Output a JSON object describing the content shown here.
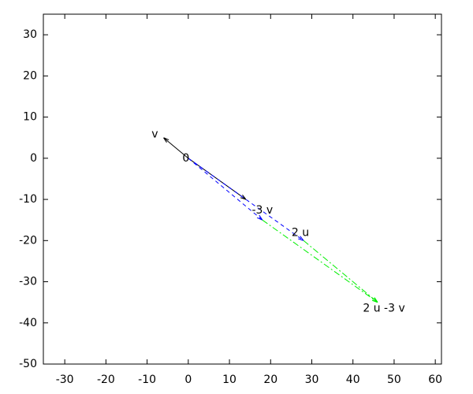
{
  "chart_data": {
    "type": "vector",
    "xlim": [
      -35.2,
      61.5
    ],
    "ylim": [
      -50,
      35
    ],
    "xticks": [
      -30,
      -20,
      -10,
      0,
      10,
      20,
      30,
      40,
      50,
      60
    ],
    "yticks": [
      -50,
      -40,
      -30,
      -20,
      -10,
      0,
      10,
      20,
      30
    ],
    "points": [
      {
        "name": "0",
        "x": 0,
        "y": 0
      },
      {
        "name": "v",
        "x": -6,
        "y": 5
      },
      {
        "name": "-3 v",
        "x": 18,
        "y": -15
      },
      {
        "name": "2 u",
        "x": 28,
        "y": -20
      },
      {
        "name": "2 u -3 v",
        "x": 46,
        "y": -35
      }
    ],
    "arrows": [
      {
        "x0": 0,
        "y0": 0,
        "x1": -6,
        "y1": 5,
        "color": "#000000",
        "style": "solid"
      },
      {
        "x0": 0,
        "y0": 0,
        "x1": 14,
        "y1": -10,
        "color": "#000000",
        "style": "solid"
      },
      {
        "x0": 0,
        "y0": 0,
        "x1": 18,
        "y1": -15,
        "color": "#0000ff",
        "style": "dashed"
      },
      {
        "x0": 0,
        "y0": 0,
        "x1": 28,
        "y1": -20,
        "color": "#0000ff",
        "style": "dashed"
      },
      {
        "x0": 18,
        "y0": -15,
        "x1": 46,
        "y1": -35,
        "color": "#00ee00",
        "style": "dashdot"
      },
      {
        "x0": 28,
        "y0": -20,
        "x1": 46,
        "y1": -35,
        "color": "#00ee00",
        "style": "dashdot"
      }
    ]
  }
}
